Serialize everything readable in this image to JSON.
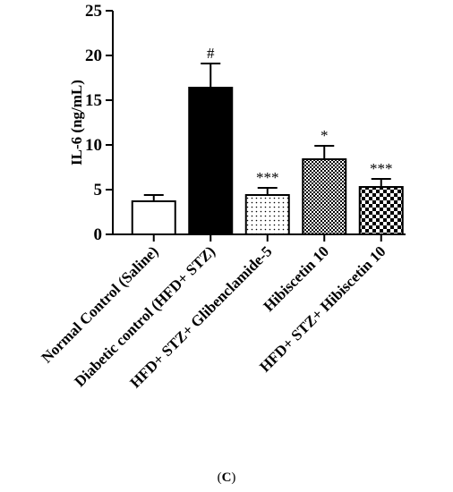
{
  "chart_data": {
    "type": "bar",
    "ylabel": "IL-6 (ng/mL)",
    "xlabel": "",
    "ylim": [
      0,
      25
    ],
    "yticks": [
      0,
      5,
      10,
      15,
      20,
      25
    ],
    "categories": [
      "Normal Control (Saline)",
      "Diabetic control (HFD+ STZ)",
      "HFD+ STZ+ Glibenclamide-5",
      "Hibiscetin 10",
      "HFD+ STZ+ Hibiscetin 10"
    ],
    "values": [
      3.7,
      16.4,
      4.4,
      8.4,
      5.3
    ],
    "errors": [
      0.7,
      2.7,
      0.8,
      1.5,
      0.9
    ],
    "significance": [
      "",
      "#",
      "***",
      "*",
      "***"
    ],
    "fills": [
      "white",
      "black",
      "dots",
      "checker-fine",
      "checker-coarse"
    ]
  },
  "panel_label": {
    "open": "(",
    "letter": "C",
    "close": ")"
  }
}
